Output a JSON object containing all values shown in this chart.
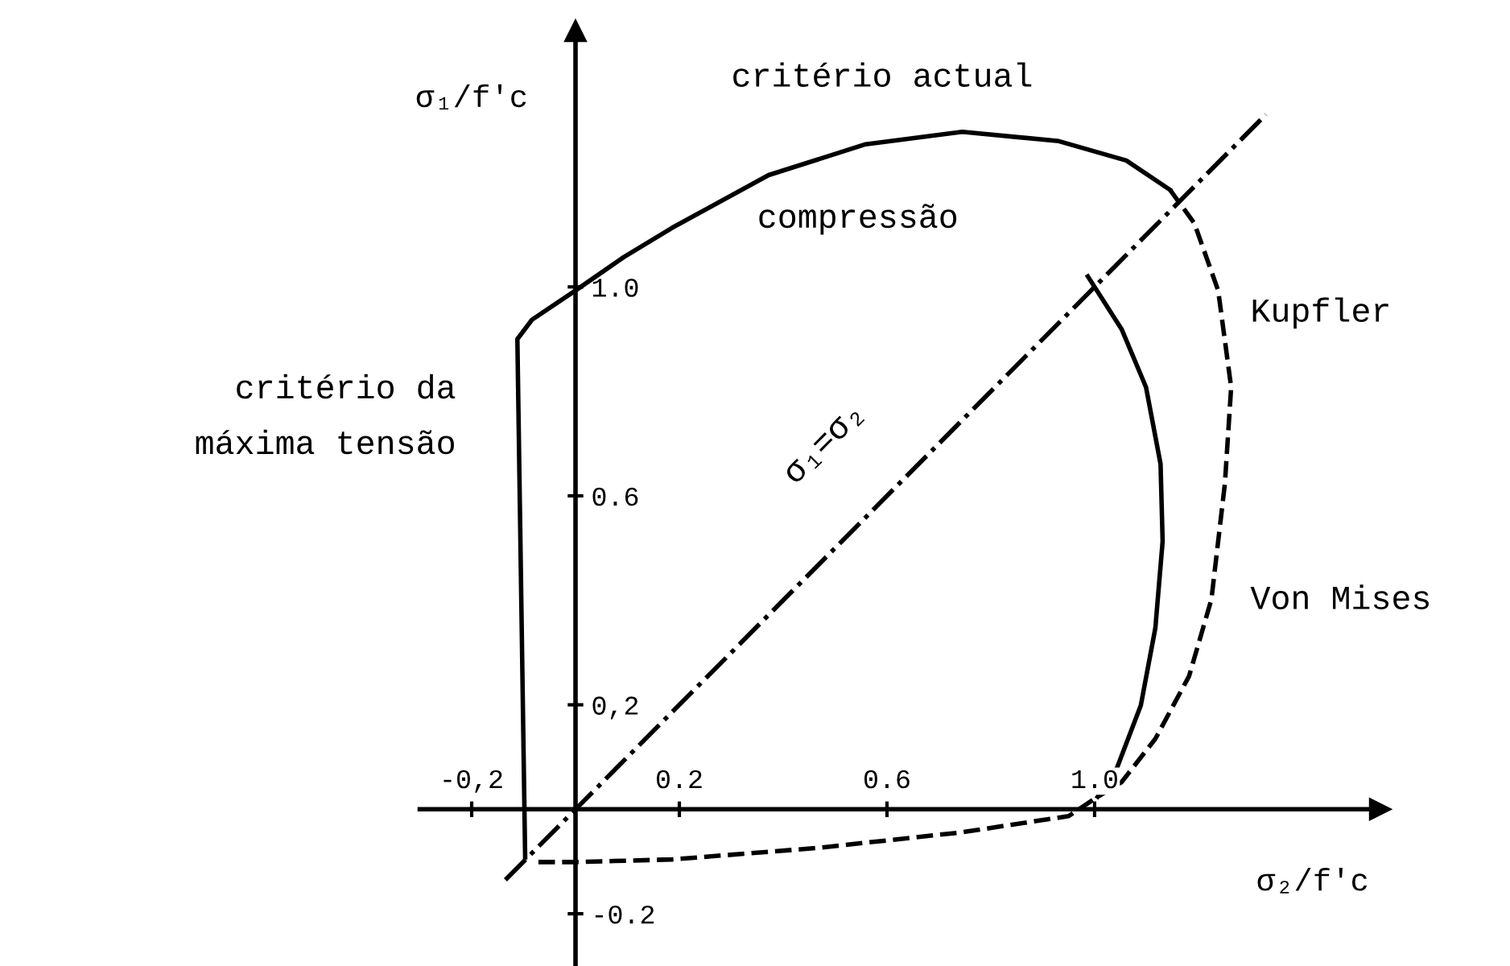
{
  "chart_data": {
    "type": "line",
    "xlabel": "σ₂/f′c",
    "ylabel": "σ₁/f′c",
    "xlim": [
      -0.3,
      1.55
    ],
    "ylim": [
      -0.3,
      1.49
    ],
    "xticks": [
      {
        "value": -0.2,
        "label": "-0,2"
      },
      0.2,
      0.6,
      {
        "value": 1.0,
        "label": "1.0"
      }
    ],
    "yticks": [
      -0.2,
      {
        "value": 0.2,
        "label": "0,2"
      },
      0.6,
      {
        "value": 1.0,
        "label": "1.0"
      }
    ],
    "grid": false,
    "marker": "none",
    "series": [
      {
        "color": "#000000",
        "line_style": "solid",
        "x": [
          -0.097,
          -0.112,
          -0.084,
          0.0,
          0.093,
          0.186,
          0.372,
          0.559,
          0.745,
          0.931,
          1.061,
          1.145
        ],
        "values": [
          -0.092,
          0.9,
          0.937,
          0.993,
          1.057,
          1.113,
          1.214,
          1.273,
          1.297,
          1.279,
          1.242,
          1.186
        ]
      },
      {
        "color": "#000000",
        "line_style": "dashed",
        "x": [
          1.145,
          1.192,
          1.238,
          1.263,
          1.251,
          1.225,
          1.182,
          1.117,
          1.052,
          1.006,
          0.95,
          0.745,
          0.466,
          0.186,
          0.0,
          -0.084
        ],
        "values": [
          1.186,
          1.122,
          0.993,
          0.808,
          0.624,
          0.402,
          0.255,
          0.135,
          0.052,
          0.024,
          -0.013,
          -0.044,
          -0.074,
          -0.096,
          -0.101,
          -0.101
        ]
      },
      {
        "color": "#000000",
        "line_style": "solid",
        "x": [
          0.987,
          1.052,
          1.099,
          1.127,
          1.131,
          1.117,
          1.089,
          1.043,
          1.006
        ],
        "values": [
          1.02,
          0.919,
          0.808,
          0.661,
          0.513,
          0.347,
          0.199,
          0.079,
          0.024
        ]
      },
      {
        "color": "#000000",
        "line_style": "dashdot",
        "x": [
          -0.135,
          1.33
        ],
        "values": [
          -0.135,
          1.33
        ]
      }
    ],
    "annotations": [
      "critério actual",
      "compressão",
      "Kupfler",
      "critério da\nmáxima tensão",
      "Von Mises",
      "σ₁=σ₂"
    ]
  }
}
